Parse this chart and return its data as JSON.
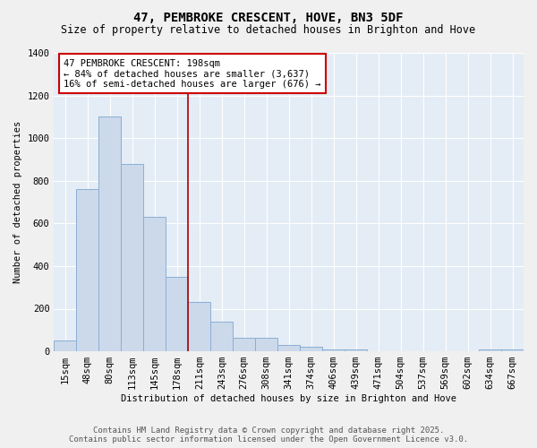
{
  "title": "47, PEMBROKE CRESCENT, HOVE, BN3 5DF",
  "subtitle": "Size of property relative to detached houses in Brighton and Hove",
  "xlabel": "Distribution of detached houses by size in Brighton and Hove",
  "ylabel": "Number of detached properties",
  "categories": [
    "15sqm",
    "48sqm",
    "80sqm",
    "113sqm",
    "145sqm",
    "178sqm",
    "211sqm",
    "243sqm",
    "276sqm",
    "308sqm",
    "341sqm",
    "374sqm",
    "406sqm",
    "439sqm",
    "471sqm",
    "504sqm",
    "537sqm",
    "569sqm",
    "602sqm",
    "634sqm",
    "667sqm"
  ],
  "values": [
    50,
    760,
    1100,
    880,
    630,
    350,
    230,
    140,
    65,
    65,
    30,
    20,
    10,
    10,
    0,
    0,
    0,
    0,
    0,
    10,
    10
  ],
  "bar_color": "#ccd9eb",
  "bar_edge_color": "#8aafd4",
  "vline_color": "#aa0000",
  "annotation_text": "47 PEMBROKE CRESCENT: 198sqm\n← 84% of detached houses are smaller (3,637)\n16% of semi-detached houses are larger (676) →",
  "annotation_box_color": "#ffffff",
  "annotation_box_edge": "#cc0000",
  "ylim": [
    0,
    1400
  ],
  "yticks": [
    0,
    200,
    400,
    600,
    800,
    1000,
    1200,
    1400
  ],
  "footer": "Contains HM Land Registry data © Crown copyright and database right 2025.\nContains public sector information licensed under the Open Government Licence v3.0.",
  "bg_color": "#f0f0f0",
  "plot_bg_color": "#e4ecf5",
  "grid_color": "#ffffff",
  "title_fontsize": 10,
  "subtitle_fontsize": 8.5,
  "axis_fontsize": 7.5,
  "footer_fontsize": 6.5
}
